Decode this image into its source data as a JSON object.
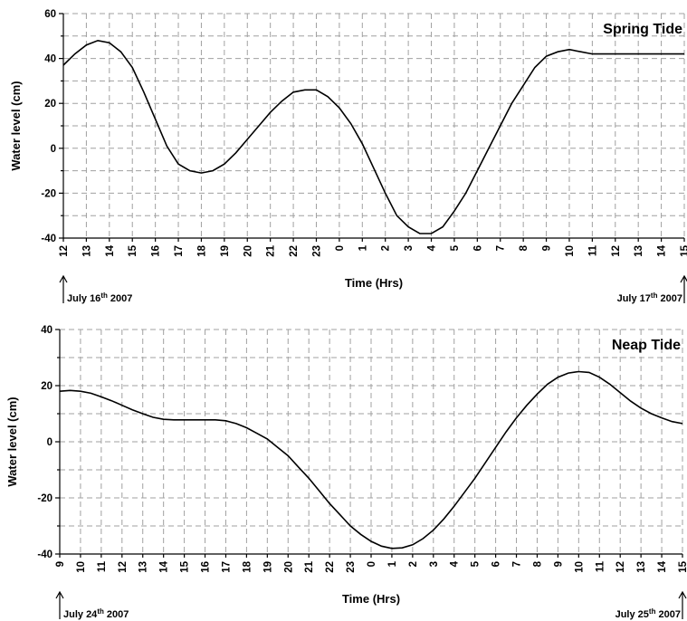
{
  "chart_data": [
    {
      "type": "line",
      "title": "Spring Tide",
      "xlabel": "Time (Hrs)",
      "ylabel": "Water level (cm)",
      "ylim": [
        -40,
        60
      ],
      "yticks": [
        "60",
        "40",
        "20",
        "0",
        "-20",
        "-40"
      ],
      "categories": [
        "12",
        "13",
        "14",
        "15",
        "16",
        "17",
        "18",
        "19",
        "20",
        "21",
        "22",
        "23",
        "0",
        "1",
        "2",
        "3",
        "4",
        "5",
        "6",
        "7",
        "8",
        "9",
        "10",
        "11",
        "12",
        "13",
        "14",
        "15"
      ],
      "grid": true,
      "start_date": {
        "prefix": "July 16",
        "sup": "th",
        "suffix": " 2007"
      },
      "end_date": {
        "prefix": "July 17",
        "sup": "th",
        "suffix": " 2007"
      },
      "series": [
        {
          "x": [
            0,
            0.5,
            1,
            1.5,
            2,
            2.5,
            3,
            3.5,
            4,
            4.5,
            5,
            5.5,
            6,
            6.5,
            7,
            7.5,
            8,
            8.5,
            9,
            9.5,
            10,
            10.5,
            11,
            11.5,
            12,
            12.5,
            13,
            13.5,
            14,
            14.5,
            15,
            15.5,
            16,
            16.5,
            17,
            17.5,
            18,
            18.5,
            19,
            19.5,
            20,
            20.5,
            21,
            21.5,
            22,
            22.5,
            23,
            23.5,
            24,
            24.5,
            25,
            25.5,
            26,
            26.5,
            27
          ],
          "values": [
            37,
            42,
            46,
            48,
            47,
            43,
            36,
            25,
            13,
            1,
            -7,
            -10,
            -11,
            -10,
            -7,
            -2,
            4,
            10,
            16,
            21,
            25,
            26,
            26,
            23,
            18,
            11,
            2,
            -9,
            -20,
            -30,
            -35,
            -38,
            -38,
            -35,
            -28,
            -20,
            -10,
            0,
            10,
            20,
            28,
            36,
            41,
            43,
            44,
            43,
            42,
            42,
            42,
            42,
            42,
            42,
            42,
            42,
            42
          ]
        }
      ]
    },
    {
      "type": "line",
      "title": "Neap Tide",
      "xlabel": "Time (Hrs)",
      "ylabel": "Water level (cm)",
      "ylim": [
        -40,
        40
      ],
      "yticks": [
        "40",
        "20",
        "0",
        "-20",
        "-40"
      ],
      "categories": [
        "9",
        "10",
        "11",
        "12",
        "13",
        "14",
        "15",
        "16",
        "17",
        "18",
        "19",
        "20",
        "21",
        "22",
        "23",
        "0",
        "1",
        "2",
        "3",
        "4",
        "5",
        "6",
        "7",
        "8",
        "9",
        "10",
        "11",
        "12",
        "13",
        "14",
        "15"
      ],
      "grid": true,
      "start_date": {
        "prefix": "July 24",
        "sup": "th",
        "suffix": " 2007"
      },
      "end_date": {
        "prefix": "July 25",
        "sup": "th",
        "suffix": " 2007"
      },
      "series": [
        {
          "x": [
            0,
            0.5,
            1,
            1.5,
            2,
            2.5,
            3,
            3.5,
            4,
            4.5,
            5,
            5.5,
            6,
            6.5,
            7,
            7.5,
            8,
            8.5,
            9,
            9.5,
            10,
            10.5,
            11,
            11.5,
            12,
            12.5,
            13,
            13.5,
            14,
            14.5,
            15,
            15.5,
            16,
            16.5,
            17,
            17.5,
            18,
            18.5,
            19,
            19.5,
            20,
            20.5,
            21,
            21.5,
            22,
            22.5,
            23,
            23.5,
            24,
            24.5,
            25,
            25.5,
            26,
            26.5,
            27,
            27.5,
            28,
            28.5,
            29,
            29.5,
            30
          ],
          "values": [
            18,
            18.3,
            18,
            17.3,
            16,
            14.6,
            13,
            11.4,
            10,
            8.7,
            8,
            7.8,
            7.8,
            7.8,
            7.8,
            7.8,
            7.5,
            6.5,
            5,
            3,
            1,
            -2,
            -5,
            -9,
            -13,
            -17.5,
            -22,
            -26,
            -30,
            -33,
            -35.5,
            -37.2,
            -38,
            -37.8,
            -36.7,
            -34.5,
            -31.5,
            -27.5,
            -23,
            -18,
            -13,
            -7.5,
            -2,
            3.5,
            8.5,
            13,
            17,
            20.5,
            23,
            24.5,
            25,
            24.7,
            23,
            20.5,
            17.5,
            14.5,
            12,
            10,
            8.5,
            7.2,
            6.5
          ]
        }
      ]
    }
  ]
}
